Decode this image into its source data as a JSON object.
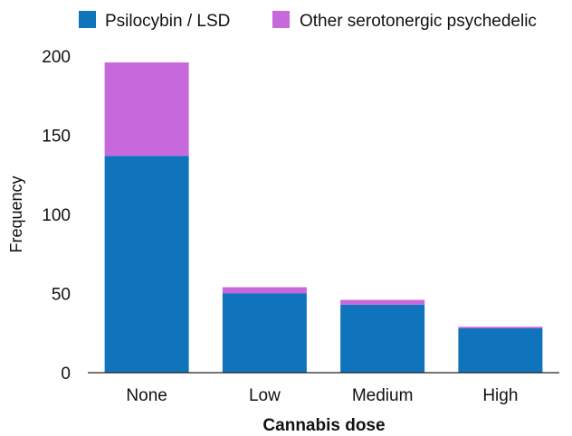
{
  "chart_data": {
    "type": "bar",
    "stacked": true,
    "categories": [
      "None",
      "Low",
      "Medium",
      "High"
    ],
    "series": [
      {
        "name": "Psilocybin / LSD",
        "color": "#0f74bb",
        "values": [
          137,
          50,
          43,
          28
        ]
      },
      {
        "name": "Other serotonergic psychedelic",
        "color": "#c768dd",
        "values": [
          59,
          4,
          3,
          1
        ]
      }
    ],
    "xlabel": "Cannabis dose",
    "ylabel": "Frequency",
    "ylim": [
      0,
      200
    ],
    "yticks": [
      0,
      50,
      100,
      150,
      200
    ],
    "grid": false,
    "legend_position": "top"
  }
}
